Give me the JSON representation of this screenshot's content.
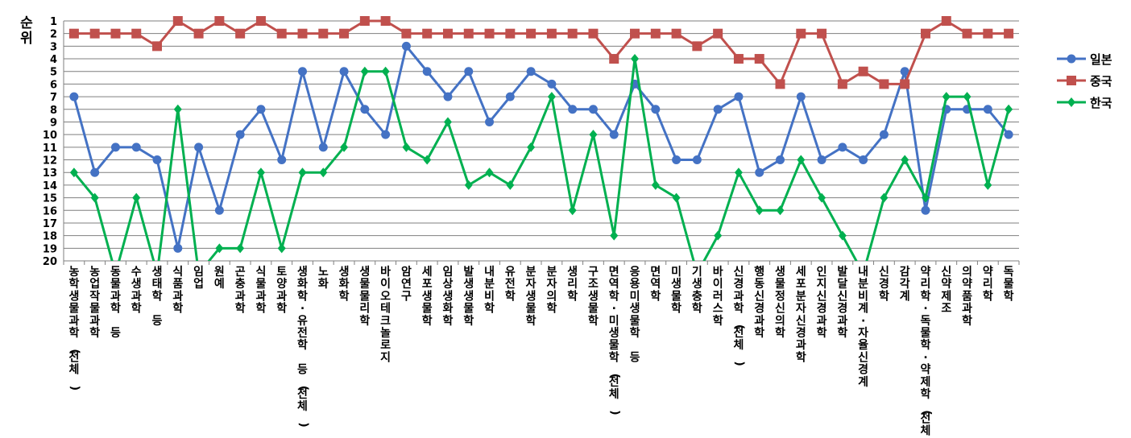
{
  "chart_data": {
    "type": "line",
    "ylabel": "순위",
    "ylim": [
      1,
      20
    ],
    "y_inverted": true,
    "yticks": [
      1,
      2,
      3,
      4,
      5,
      6,
      7,
      8,
      9,
      10,
      11,
      12,
      13,
      14,
      15,
      16,
      17,
      18,
      19,
      20
    ],
    "grid": true,
    "legend_position": "right",
    "categories": [
      "농학생물과학(전체)",
      "농업작물과학",
      "동물과학 등",
      "수생과학",
      "생태학 등",
      "식품과학",
      "임업",
      "원예",
      "곤충과학",
      "식물과학",
      "토양과학",
      "생화학·유전학 등(전체)",
      "노화",
      "생화학",
      "생물물리학",
      "바이오테크놀로지",
      "암연구",
      "세포생물학",
      "임상생화학",
      "발생생물학",
      "내분비학",
      "유전학",
      "분자생물학",
      "분자의학",
      "생리학",
      "구조생물학",
      "면역학·미생물학(전체)",
      "응용미생물학 등",
      "면역학",
      "미생물학",
      "기생충학",
      "바이러스학",
      "신경과학(전체)",
      "행동신경과학",
      "생물정신의학",
      "세포분자신경과학",
      "인지신경과학",
      "발달신경과학",
      "내분비계·자율신경계",
      "신경학",
      "감각계",
      "약리학·독물학·약제학(전체)",
      "신약제조",
      "의약품과학",
      "약리학",
      "독물학"
    ],
    "series": [
      {
        "name": "일본",
        "color": "#4472c4",
        "marker": "circle",
        "values": [
          7,
          13,
          11,
          11,
          12,
          19,
          11,
          16,
          10,
          8,
          12,
          5,
          11,
          5,
          8,
          10,
          3,
          5,
          7,
          5,
          9,
          7,
          5,
          6,
          8,
          8,
          10,
          6,
          8,
          12,
          12,
          8,
          7,
          13,
          12,
          7,
          12,
          11,
          12,
          10,
          5,
          16,
          8,
          8,
          8,
          10
        ]
      },
      {
        "name": "중국",
        "color": "#c0504d",
        "marker": "square",
        "values": [
          2,
          2,
          2,
          2,
          3,
          1,
          2,
          1,
          2,
          1,
          2,
          2,
          2,
          2,
          1,
          1,
          2,
          2,
          2,
          2,
          2,
          2,
          2,
          2,
          2,
          2,
          4,
          2,
          2,
          2,
          3,
          2,
          4,
          4,
          6,
          2,
          2,
          6,
          5,
          6,
          6,
          2,
          1,
          2,
          2,
          2
        ]
      },
      {
        "name": "한국",
        "color": "#00b050",
        "marker": "diamond",
        "values": [
          13,
          15,
          21,
          15,
          21,
          8,
          21,
          19,
          19,
          13,
          19,
          13,
          13,
          11,
          5,
          5,
          11,
          12,
          9,
          14,
          13,
          14,
          11,
          7,
          16,
          10,
          18,
          4,
          14,
          15,
          21,
          18,
          13,
          16,
          16,
          12,
          15,
          18,
          21,
          15,
          12,
          15,
          7,
          7,
          14,
          8
        ]
      }
    ]
  }
}
